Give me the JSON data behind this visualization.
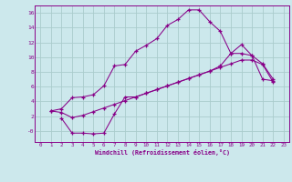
{
  "xlabel": "Windchill (Refroidissement éolien,°C)",
  "background_color": "#cce8ec",
  "grid_color": "#aacccc",
  "line_color": "#880088",
  "spine_color": "#880088",
  "xlim": [
    -0.5,
    23.5
  ],
  "ylim": [
    -1.5,
    17.0
  ],
  "xticks": [
    0,
    1,
    2,
    3,
    4,
    5,
    6,
    7,
    8,
    9,
    10,
    11,
    12,
    13,
    14,
    15,
    16,
    17,
    18,
    19,
    20,
    21,
    22,
    23
  ],
  "yticks": [
    0,
    2,
    4,
    6,
    8,
    10,
    12,
    14,
    16
  ],
  "ytick_labels": [
    "-0",
    "2",
    "4",
    "6",
    "8",
    "10",
    "12",
    "14",
    "16"
  ],
  "line1_x": [
    1,
    2,
    3,
    4,
    5,
    6,
    7,
    8,
    9,
    10,
    11,
    12,
    13,
    14,
    15,
    16,
    17,
    18,
    19,
    20,
    21,
    22
  ],
  "line1_y": [
    2.7,
    3.0,
    4.5,
    4.6,
    4.9,
    6.1,
    8.8,
    9.0,
    10.8,
    11.6,
    12.5,
    14.3,
    15.1,
    16.4,
    16.4,
    14.8,
    13.5,
    10.5,
    11.7,
    10.2,
    9.1,
    7.0
  ],
  "line2_x": [
    2,
    3,
    4,
    5,
    6,
    7,
    8,
    9,
    10,
    11,
    12,
    13,
    14,
    15,
    16,
    17,
    18,
    19,
    20,
    21,
    22
  ],
  "line2_y": [
    1.7,
    -0.3,
    -0.3,
    -0.4,
    -0.3,
    2.3,
    4.6,
    4.6,
    5.1,
    5.6,
    6.1,
    6.6,
    7.1,
    7.6,
    8.1,
    8.8,
    10.5,
    10.5,
    10.2,
    7.0,
    6.8
  ],
  "line3_x": [
    1,
    2,
    3,
    4,
    5,
    6,
    7,
    8,
    9,
    10,
    11,
    12,
    13,
    14,
    15,
    16,
    17,
    18,
    19,
    20,
    21,
    22
  ],
  "line3_y": [
    2.7,
    2.5,
    1.8,
    2.1,
    2.6,
    3.1,
    3.6,
    4.1,
    4.6,
    5.1,
    5.6,
    6.1,
    6.6,
    7.1,
    7.6,
    8.1,
    8.6,
    9.1,
    9.6,
    9.6,
    9.0,
    6.6
  ]
}
